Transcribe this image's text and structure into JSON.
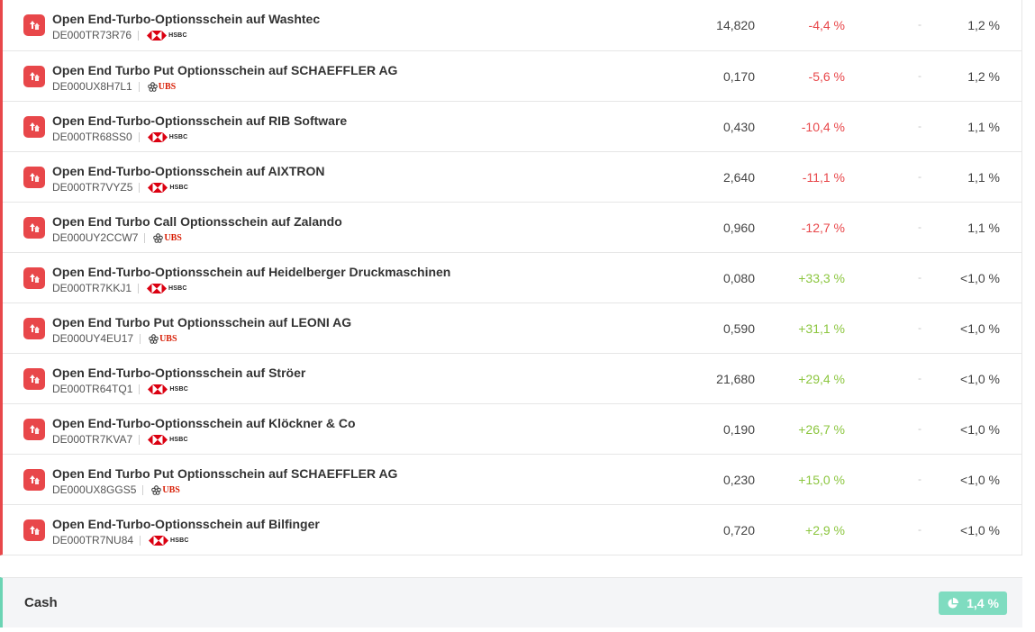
{
  "positions": [
    {
      "name": "Open End-Turbo-Optionsschein auf Washtec",
      "isin": "DE000TR73R76",
      "issuer": "HSBC",
      "price": "14,820",
      "perf": "-4,4 %",
      "perf_dir": "neg",
      "dash": "-",
      "weight": "1,2 %"
    },
    {
      "name": "Open End Turbo Put Optionsschein auf SCHAEFFLER AG",
      "isin": "DE000UX8H7L1",
      "issuer": "UBS",
      "price": "0,170",
      "perf": "-5,6 %",
      "perf_dir": "neg",
      "dash": "-",
      "weight": "1,2 %"
    },
    {
      "name": "Open End-Turbo-Optionsschein auf RIB Software",
      "isin": "DE000TR68SS0",
      "issuer": "HSBC",
      "price": "0,430",
      "perf": "-10,4 %",
      "perf_dir": "neg",
      "dash": "-",
      "weight": "1,1 %"
    },
    {
      "name": "Open End-Turbo-Optionsschein auf AIXTRON",
      "isin": "DE000TR7VYZ5",
      "issuer": "HSBC",
      "price": "2,640",
      "perf": "-11,1 %",
      "perf_dir": "neg",
      "dash": "-",
      "weight": "1,1 %"
    },
    {
      "name": "Open End Turbo Call Optionsschein auf Zalando",
      "isin": "DE000UY2CCW7",
      "issuer": "UBS",
      "price": "0,960",
      "perf": "-12,7 %",
      "perf_dir": "neg",
      "dash": "-",
      "weight": "1,1 %"
    },
    {
      "name": "Open End-Turbo-Optionsschein auf Heidelberger Druckmaschinen",
      "isin": "DE000TR7KKJ1",
      "issuer": "HSBC",
      "price": "0,080",
      "perf": "+33,3 %",
      "perf_dir": "pos",
      "dash": "-",
      "weight": "<1,0 %"
    },
    {
      "name": "Open End Turbo Put Optionsschein auf LEONI AG",
      "isin": "DE000UY4EU17",
      "issuer": "UBS",
      "price": "0,590",
      "perf": "+31,1 %",
      "perf_dir": "pos",
      "dash": "-",
      "weight": "<1,0 %"
    },
    {
      "name": "Open End-Turbo-Optionsschein auf Ströer",
      "isin": "DE000TR64TQ1",
      "issuer": "HSBC",
      "price": "21,680",
      "perf": "+29,4 %",
      "perf_dir": "pos",
      "dash": "-",
      "weight": "<1,0 %"
    },
    {
      "name": "Open End-Turbo-Optionsschein auf Klöckner & Co",
      "isin": "DE000TR7KVA7",
      "issuer": "HSBC",
      "price": "0,190",
      "perf": "+26,7 %",
      "perf_dir": "pos",
      "dash": "-",
      "weight": "<1,0 %"
    },
    {
      "name": "Open End Turbo Put Optionsschein auf SCHAEFFLER AG",
      "isin": "DE000UX8GGS5",
      "issuer": "UBS",
      "price": "0,230",
      "perf": "+15,0 %",
      "perf_dir": "pos",
      "dash": "-",
      "weight": "<1,0 %"
    },
    {
      "name": "Open End-Turbo-Optionsschein auf Bilfinger",
      "isin": "DE000TR7NU84",
      "issuer": "HSBC",
      "price": "0,720",
      "perf": "+2,9 %",
      "perf_dir": "pos",
      "dash": "-",
      "weight": "<1,0 %"
    }
  ],
  "cash": {
    "label": "Cash",
    "weight": "1,4 %"
  },
  "colors": {
    "negative": "#e8474a",
    "positive": "#8cc63f",
    "cash_accent": "#6bd4b4",
    "badge": "#e8474a"
  },
  "icons": {
    "position_badge": "arrow-up-icon",
    "cash_badge": "pie-chart-icon",
    "hsbc_logo": "hsbc-hexagon-logo",
    "ubs_logo": "ubs-keys-logo"
  }
}
